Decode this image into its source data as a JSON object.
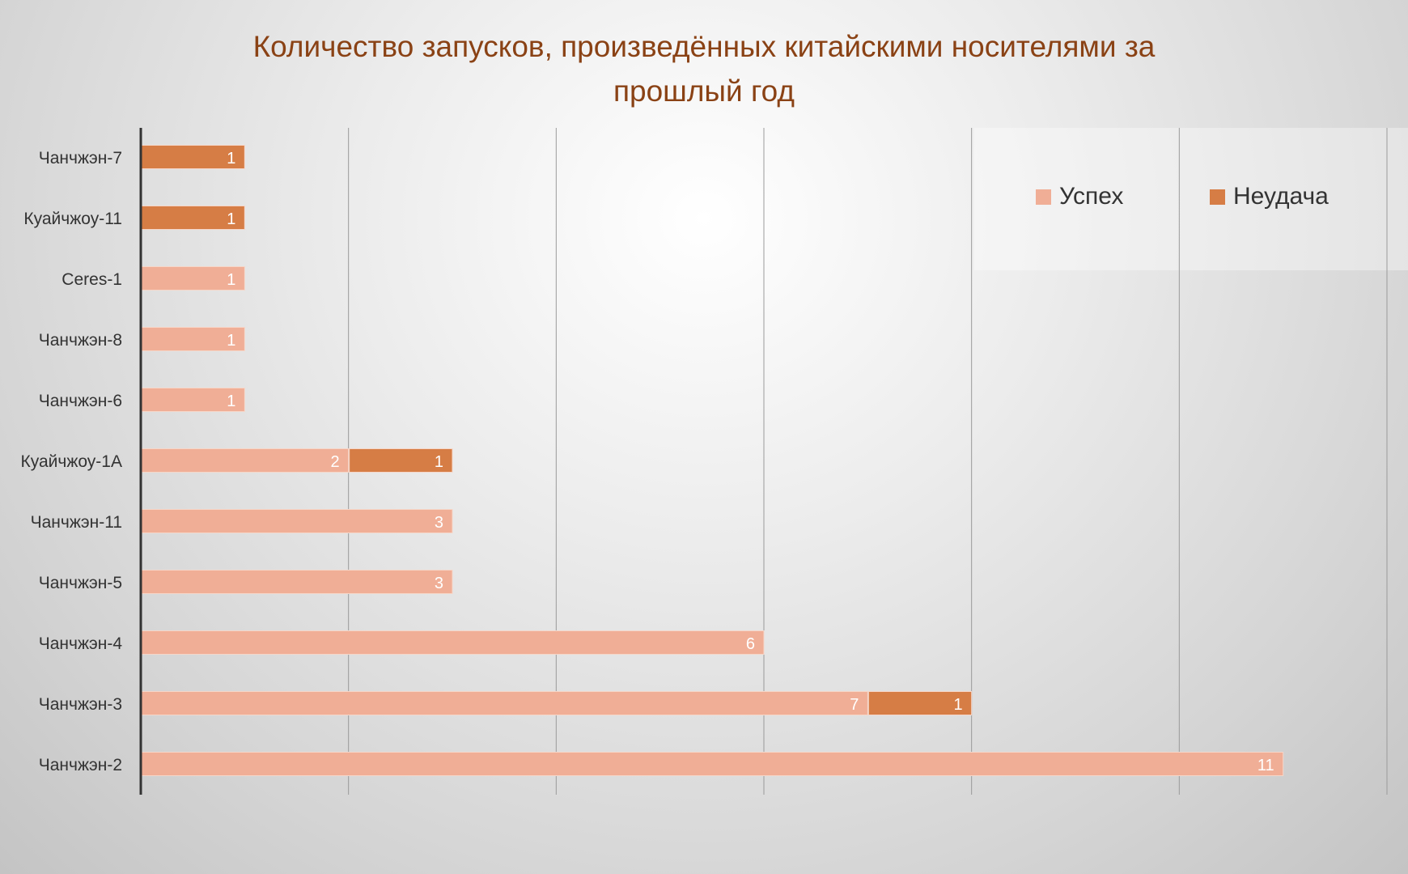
{
  "chart_data": {
    "type": "bar",
    "orientation": "horizontal",
    "stacked": true,
    "title": "Количество запусков, произведённых китайскими носителями за прошлый год",
    "title_lines": [
      "Количество запусков, произведённых китайскими носителями за",
      "прошлый год"
    ],
    "categories": [
      "Чанчжэн-7",
      "Куайчжоу-11",
      "Ceres-1",
      "Чанчжэн-8",
      "Чанчжэн-6",
      "Куайчжоу-1А",
      "Чанчжэн-11",
      "Чанчжэн-5",
      "Чанчжэн-4",
      "Чанчжэн-3",
      "Чанчжэн-2"
    ],
    "series": [
      {
        "name": "Успех",
        "color": "#f0ae96",
        "values": [
          0,
          0,
          1,
          1,
          1,
          2,
          3,
          3,
          6,
          7,
          11
        ]
      },
      {
        "name": "Неудача",
        "color": "#d67d45",
        "values": [
          1,
          1,
          0,
          0,
          0,
          1,
          0,
          0,
          0,
          1,
          0
        ]
      }
    ],
    "xlim": [
      0,
      12
    ],
    "x_gridlines": [
      0,
      2,
      4,
      6,
      8,
      10,
      12
    ],
    "x_tick_labels_shown": false,
    "grid": true,
    "data_labels": true,
    "legend": "top-right",
    "title_color": "#8a4215"
  }
}
